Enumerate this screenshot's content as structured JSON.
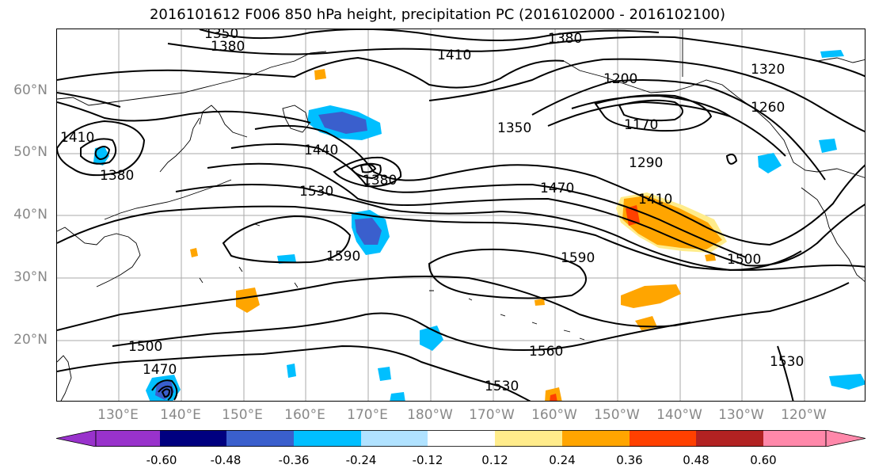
{
  "title": "2016101612 F006 850 hPa height, precipitation PC (2016102000 - 2016102100)",
  "lat_labels": [
    "60°N",
    "50°N",
    "40°N",
    "30°N",
    "20°N"
  ],
  "lon_labels": [
    "130°E",
    "140°E",
    "150°E",
    "160°E",
    "170°E",
    "180°W",
    "170°W",
    "160°W",
    "150°W",
    "140°W",
    "130°W",
    "120°W"
  ],
  "contour_labels": {
    "c1350": "1350",
    "c1380a": "1380",
    "c1380b": "1380",
    "c1410a": "1410",
    "c1410b": "1410",
    "c1380c": "1380",
    "c1200": "1200",
    "c1170": "1170",
    "c1320": "1320",
    "c1260": "1260",
    "c1350b": "1350",
    "c1440": "1440",
    "c1380d": "1380",
    "c1290": "1290",
    "c1530a": "1530",
    "c1470a": "1470",
    "c1410c": "1410",
    "c1590a": "1590",
    "c1590b": "1590",
    "c1500a": "1500",
    "c1500b": "1500",
    "c1470b": "1470",
    "c1560": "1560",
    "c1530b": "1530",
    "c1530c": "1530"
  },
  "colorbar": {
    "colors": [
      "#9932CC",
      "#000080",
      "#3A5FCD",
      "#00BFFF",
      "#B0E2FF",
      "#FFFFFF",
      "#FFEC8B",
      "#FFA500",
      "#FF4000",
      "#B22222",
      "#FF88AA"
    ],
    "tick_labels": [
      "-0.60",
      "-0.48",
      "-0.36",
      "-0.24",
      "-0.12",
      "0.12",
      "0.24",
      "0.36",
      "0.48",
      "0.60"
    ]
  }
}
